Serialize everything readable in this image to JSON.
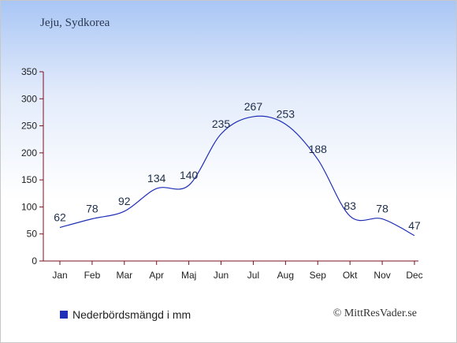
{
  "chart_data": {
    "type": "line",
    "title": "Jeju, Sydkorea",
    "categories": [
      "Jan",
      "Feb",
      "Mar",
      "Apr",
      "Maj",
      "Jun",
      "Jul",
      "Aug",
      "Sep",
      "Okt",
      "Nov",
      "Dec"
    ],
    "series": [
      {
        "name": "Nederbördsmängd i mm",
        "values": [
          62,
          78,
          92,
          134,
          140,
          235,
          267,
          253,
          188,
          83,
          78,
          47
        ],
        "color": "#1f2fb8"
      }
    ],
    "yticks": [
      0,
      50,
      100,
      150,
      200,
      250,
      300,
      350
    ],
    "ylim": [
      0,
      350
    ],
    "legend_position": "bottom-left",
    "grid": false
  },
  "copyright": "© MittResVader.se",
  "colors": {
    "axis": "#7a1020",
    "line": "#1f2fb8"
  }
}
